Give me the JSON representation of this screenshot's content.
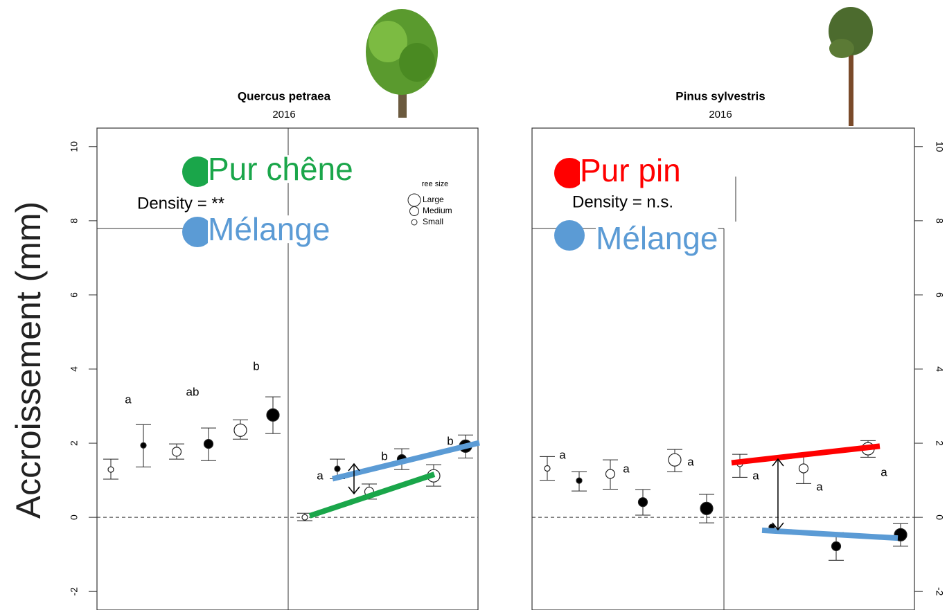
{
  "chart_data": [
    {
      "type": "errorbar",
      "title": "Quercus petraea",
      "subtitle": "2016",
      "ylabel": "Accroissement (mm)",
      "ylim": [
        -2.5,
        10.5
      ],
      "yticks": [
        -2,
        0,
        2,
        4,
        6,
        8,
        10
      ],
      "axis_side": "left",
      "reference_line": 0,
      "annotation": "Density = **",
      "size_legend": {
        "title": "ree size",
        "items": [
          "Large",
          "Medium",
          "Small"
        ]
      },
      "values": [
        1.29,
        1.94,
        1.77,
        1.98,
        2.35,
        2.76,
        0.0,
        1.31,
        0.69,
        1.57,
        1.12,
        1.92
      ],
      "lower": [
        1.03,
        1.36,
        1.57,
        1.53,
        2.11,
        2.26,
        -0.09,
        1.04,
        0.49,
        1.29,
        0.84,
        1.6
      ],
      "upper": [
        1.57,
        2.5,
        1.98,
        2.41,
        2.63,
        3.25,
        0.11,
        1.57,
        0.9,
        1.85,
        1.42,
        2.22
      ],
      "filled": [
        false,
        true,
        false,
        true,
        false,
        true,
        false,
        true,
        false,
        true,
        false,
        true
      ],
      "sizes": [
        "Small",
        "Small",
        "Medium",
        "Medium",
        "Large",
        "Large",
        "Small",
        "Small",
        "Medium",
        "Medium",
        "Large",
        "Large"
      ],
      "letters": [
        "a",
        "ab",
        "b",
        "a",
        "b",
        "b"
      ],
      "series": [
        {
          "name": "Pur chêne",
          "color": "#1aa64a",
          "values": [
            0.04,
            1.16
          ]
        },
        {
          "name": "Mélange",
          "color": "#5b9bd5",
          "values": [
            1.04,
            2.01
          ]
        }
      ]
    },
    {
      "type": "errorbar",
      "title": "Pinus sylvestris",
      "subtitle": "2016",
      "ylim": [
        -2.5,
        10.5
      ],
      "yticks": [
        -2,
        0,
        2,
        4,
        6,
        8,
        10
      ],
      "axis_side": "right",
      "reference_line": 0,
      "annotation": "Density = n.s.",
      "values": [
        1.32,
        0.99,
        1.17,
        0.41,
        1.55,
        0.24,
        1.44,
        -0.26,
        1.32,
        -0.78,
        1.85,
        -0.47
      ],
      "lower": [
        1.0,
        0.71,
        0.76,
        0.06,
        1.23,
        -0.15,
        1.08,
        -0.26,
        0.91,
        -1.16,
        1.62,
        -0.78
      ],
      "upper": [
        1.64,
        1.23,
        1.55,
        0.75,
        1.83,
        0.62,
        1.7,
        -0.26,
        1.68,
        -0.41,
        2.07,
        -0.17
      ],
      "filled": [
        false,
        true,
        false,
        true,
        false,
        true,
        false,
        true,
        false,
        true,
        false,
        true
      ],
      "sizes": [
        "Small",
        "Small",
        "Medium",
        "Medium",
        "Large",
        "Large",
        "Small",
        "Small",
        "Medium",
        "Medium",
        "Large",
        "Large"
      ],
      "letters": [
        "a",
        "a",
        "a",
        "a",
        "a",
        "a"
      ],
      "series": [
        {
          "name": "Pur pin",
          "color": "#ff0000",
          "values": [
            1.47,
            1.92
          ]
        },
        {
          "name": "Mélange",
          "color": "#5b9bd5",
          "values": [
            -0.35,
            -0.56
          ]
        }
      ]
    }
  ]
}
